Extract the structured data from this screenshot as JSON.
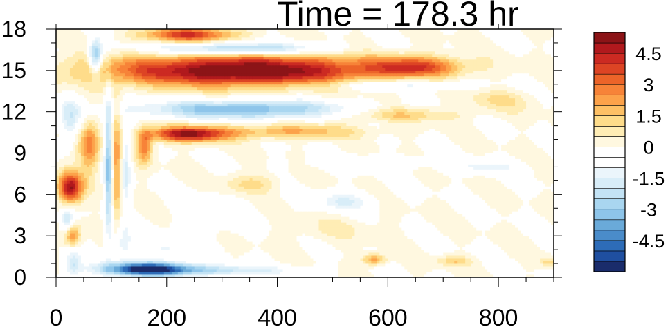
{
  "chart_data": {
    "type": "heatmap",
    "title": "Time = 178.3 hr",
    "xlabel": "",
    "ylabel": "",
    "xlim": [
      0,
      900
    ],
    "ylim": [
      0,
      18
    ],
    "x_ticks": [
      0,
      200,
      400,
      600,
      800
    ],
    "y_ticks": [
      0,
      3,
      6,
      9,
      12,
      15,
      18
    ],
    "colorbar": {
      "placement": "right",
      "levels": [
        -5.5,
        -5,
        -4.5,
        -4,
        -3.5,
        -3,
        -2.5,
        -2,
        -1.5,
        -1,
        -0.5,
        0,
        0.5,
        1,
        1.5,
        2,
        2.5,
        3,
        3.5,
        4,
        4.5,
        5,
        5.5
      ],
      "labels": [
        "4.5",
        "3",
        "1.5",
        "0",
        "-1.5",
        "-3",
        "-4.5"
      ],
      "label_values": [
        4.5,
        3,
        1.5,
        0,
        -1.5,
        -3,
        -4.5
      ],
      "colors": [
        "#1a2c6b",
        "#1f4fa0",
        "#2d6cb8",
        "#4a8cca",
        "#6aaad9",
        "#8ec5ea",
        "#a9d6f0",
        "#c3e3f5",
        "#d8edf8",
        "#ebf5fb",
        "#ffffff",
        "#ffffff",
        "#fff8e0",
        "#ffedb5",
        "#fedc8a",
        "#fdc065",
        "#fca24a",
        "#f78338",
        "#ec6429",
        "#dd4424",
        "#cc2a22",
        "#b1191d",
        "#8c1417"
      ]
    },
    "features": [
      {
        "x": 340,
        "y": 15.0,
        "sx": 250,
        "sy": 1.1,
        "value": 6.0
      },
      {
        "x": 650,
        "y": 15.3,
        "sx": 80,
        "sy": 0.7,
        "value": 3.0
      },
      {
        "x": 240,
        "y": 17.6,
        "sx": 80,
        "sy": 0.5,
        "value": 4.0
      },
      {
        "x": 330,
        "y": 16.6,
        "sx": 150,
        "sy": 0.45,
        "value": -3.0
      },
      {
        "x": 600,
        "y": 14.0,
        "sx": 150,
        "sy": 0.45,
        "value": -1.5
      },
      {
        "x": 340,
        "y": 12.2,
        "sx": 180,
        "sy": 0.65,
        "value": -3.5
      },
      {
        "x": 240,
        "y": 10.4,
        "sx": 70,
        "sy": 0.55,
        "value": 5.0
      },
      {
        "x": 420,
        "y": 10.6,
        "sx": 130,
        "sy": 0.5,
        "value": 2.0
      },
      {
        "x": 620,
        "y": 11.8,
        "sx": 100,
        "sy": 0.5,
        "value": 1.5
      },
      {
        "x": 800,
        "y": 12.8,
        "sx": 60,
        "sy": 0.8,
        "value": 1.0
      },
      {
        "x": 780,
        "y": 8.0,
        "sx": 60,
        "sy": 0.5,
        "value": -1.2
      },
      {
        "x": 580,
        "y": 8.3,
        "sx": 120,
        "sy": 0.5,
        "value": -0.8
      },
      {
        "x": 25,
        "y": 6.5,
        "sx": 22,
        "sy": 1.1,
        "value": 5.0
      },
      {
        "x": 60,
        "y": 9.5,
        "sx": 18,
        "sy": 1.8,
        "value": 3.0
      },
      {
        "x": 25,
        "y": 11.5,
        "sx": 20,
        "sy": 1.5,
        "value": -1.8
      },
      {
        "x": 72,
        "y": 16.0,
        "sx": 12,
        "sy": 1.2,
        "value": -3.5
      },
      {
        "x": 95,
        "y": 8.0,
        "sx": 7,
        "sy": 5.0,
        "value": -3.5
      },
      {
        "x": 110,
        "y": 8.0,
        "sx": 10,
        "sy": 4.0,
        "value": 2.5
      },
      {
        "x": 125,
        "y": 8.0,
        "sx": 10,
        "sy": 3.0,
        "value": -2.0
      },
      {
        "x": 160,
        "y": 9.5,
        "sx": 14,
        "sy": 1.2,
        "value": 3.0
      },
      {
        "x": 30,
        "y": 3.0,
        "sx": 14,
        "sy": 0.8,
        "value": 2.5
      },
      {
        "x": 20,
        "y": 4.2,
        "sx": 12,
        "sy": 0.8,
        "value": -2.0
      },
      {
        "x": 30,
        "y": 1.0,
        "sx": 16,
        "sy": 1.0,
        "value": -2.0
      },
      {
        "x": 165,
        "y": 0.6,
        "sx": 80,
        "sy": 0.5,
        "value": -6.0
      },
      {
        "x": 300,
        "y": 0.5,
        "sx": 120,
        "sy": 0.4,
        "value": -2.0
      },
      {
        "x": 575,
        "y": 1.3,
        "sx": 20,
        "sy": 0.4,
        "value": 2.5
      },
      {
        "x": 720,
        "y": 1.2,
        "sx": 30,
        "sy": 0.35,
        "value": 1.5
      },
      {
        "x": 890,
        "y": 1.1,
        "sx": 15,
        "sy": 0.3,
        "value": 1.5
      },
      {
        "x": 350,
        "y": 6.8,
        "sx": 50,
        "sy": 0.7,
        "value": 1.2
      },
      {
        "x": 520,
        "y": 5.5,
        "sx": 50,
        "sy": 0.7,
        "value": -1.5
      },
      {
        "x": 280,
        "y": 4.5,
        "sx": 60,
        "sy": 1.5,
        "value": -0.7
      },
      {
        "x": 500,
        "y": 3.5,
        "sx": 80,
        "sy": 1.0,
        "value": 0.5
      },
      {
        "x": 200,
        "y": 2.0,
        "sx": 40,
        "sy": 0.7,
        "value": -1.2
      },
      {
        "x": 120,
        "y": 2.5,
        "sx": 20,
        "sy": 1.2,
        "value": -1.5
      }
    ]
  }
}
